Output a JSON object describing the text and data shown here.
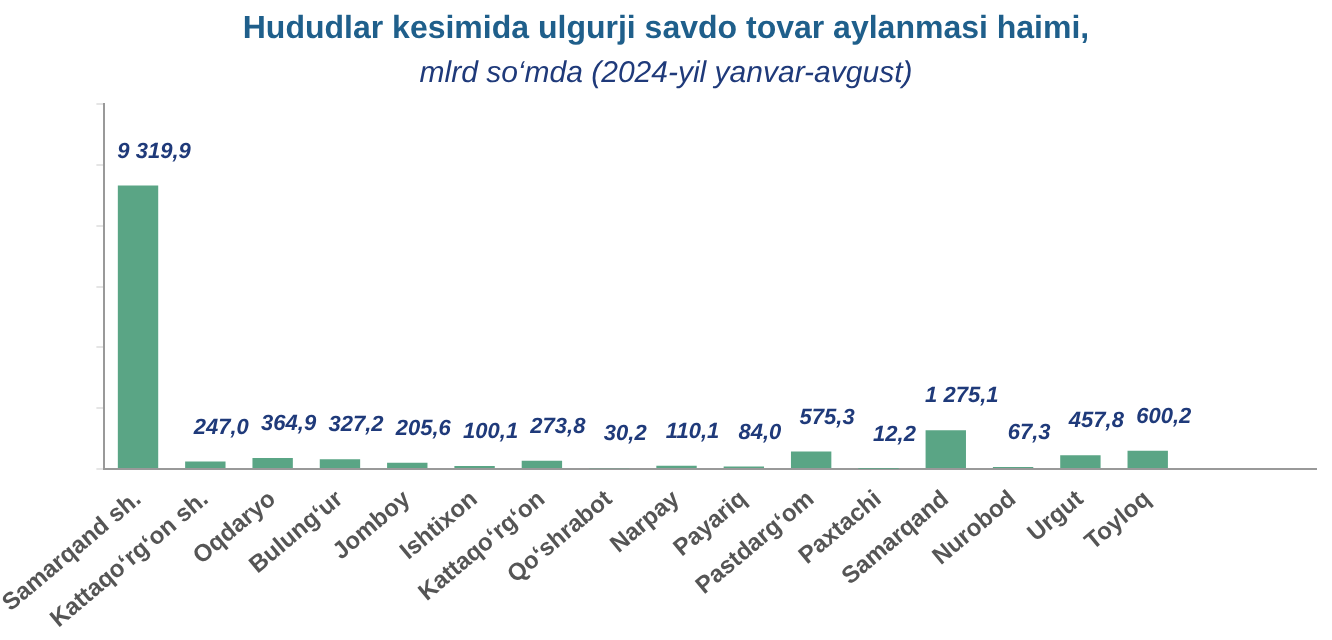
{
  "chart_data": {
    "type": "bar",
    "title": "Hududlar kesimida ulgurji savdo tovar aylanmasi  haimi,",
    "subtitle": "mlrd so‘mda  (2024-yil yanvar-avgust)",
    "categories": [
      "Samarqand sh.",
      "Kattaqo‘rg‘on sh.",
      "Oqdaryo",
      "Bulung‘ur",
      "Jomboy",
      "Ishtixon",
      "Kattaqo‘rg‘on",
      "Qo‘shrabot",
      "Narpay",
      "Payariq",
      "Pastdarg‘om",
      "Paxtachi",
      "Samarqand",
      "Nurobod",
      "Urgut",
      "Toyloq",
      null,
      null
    ],
    "values": [
      9319.9,
      247.0,
      364.9,
      327.2,
      205.6,
      100.1,
      273.8,
      30.2,
      110.1,
      84.0,
      575.3,
      12.2,
      1275.1,
      67.3,
      457.8,
      600.2,
      null,
      null
    ],
    "value_labels": [
      "9 319,9",
      "247,0",
      "364,9",
      "327,2",
      "205,6",
      "100,1",
      "273,8",
      "30,2",
      "110,1",
      "84,0",
      "575,3",
      "12,2",
      "1 275,1",
      "67,3",
      "457,8",
      "600,2",
      null,
      null
    ],
    "color": "#5aa585",
    "tick_labels": "x",
    "grid": false,
    "legend": false
  }
}
